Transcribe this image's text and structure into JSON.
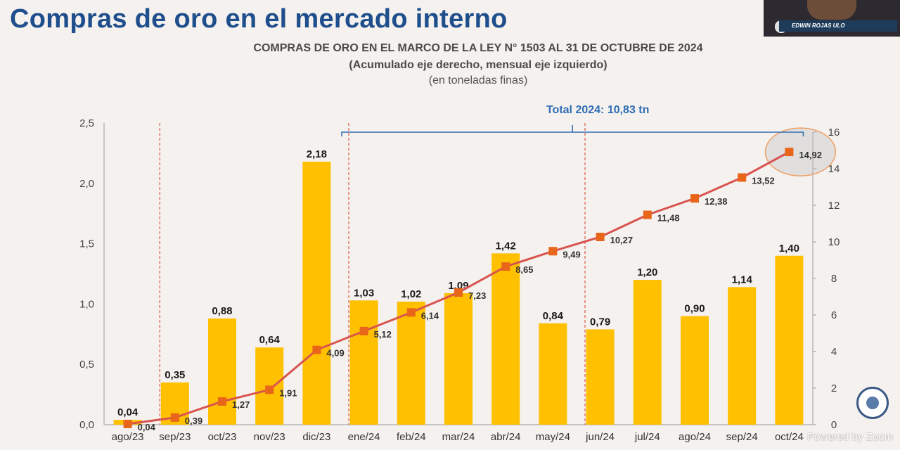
{
  "page": {
    "title": "Compras de oro en el mercado interno",
    "subtitle1": "COMPRAS DE ORO EN EL MARCO DE LA LEY N° 1503 AL 31 DE OCTUBRE DE 2024",
    "subtitle2": "(Acumulado eje derecho, mensual eje izquierdo)",
    "subtitle3": "(en toneladas finas)",
    "speaker_name": "EDWIN ROJAS ULO",
    "watermark": "Powered by Zoom"
  },
  "chart_data": {
    "type": "bar",
    "categories": [
      "ago/23",
      "sep/23",
      "oct/23",
      "nov/23",
      "dic/23",
      "ene/24",
      "feb/24",
      "mar/24",
      "abr/24",
      "may/24",
      "jun/24",
      "jul/24",
      "ago/24",
      "sep/24",
      "oct/24"
    ],
    "series": [
      {
        "type": "bar",
        "axis": "left",
        "color": "#FFC000",
        "values": [
          0.04,
          0.35,
          0.88,
          0.64,
          2.18,
          1.03,
          1.02,
          1.09,
          1.42,
          0.84,
          0.79,
          1.2,
          0.9,
          1.14,
          1.4
        ],
        "labels": [
          "0,04",
          "0,35",
          "0,88",
          "0,64",
          "2,18",
          "1,03",
          "1,02",
          "1,09",
          "1,42",
          "0,84",
          "0,79",
          "1,20",
          "0,90",
          "1,14",
          "1,40"
        ]
      },
      {
        "type": "line",
        "axis": "right",
        "color": "#D9534F",
        "marker_color": "#E8651A",
        "values": [
          0.04,
          0.39,
          1.27,
          1.91,
          4.09,
          5.12,
          6.14,
          7.23,
          8.65,
          9.49,
          10.27,
          11.48,
          12.38,
          13.52,
          14.92
        ],
        "labels": [
          "0,04",
          "0,39",
          "1,27",
          "1,91",
          "4,09",
          "5,12",
          "6,14",
          "7,23",
          "8,65",
          "9,49",
          "10,27",
          "11,48",
          "12,38",
          "13,52",
          "14,92"
        ]
      }
    ],
    "y_left": {
      "min": 0,
      "max": 2.5,
      "ticks": [
        0,
        0.5,
        1,
        1.5,
        2,
        2.5
      ],
      "tick_labels": [
        "0,0",
        "0,5",
        "1,0",
        "1,5",
        "2,0",
        "2,5"
      ]
    },
    "y_right": {
      "min": 0,
      "max": 16,
      "ticks": [
        0,
        2,
        4,
        6,
        8,
        10,
        12,
        14,
        16
      ],
      "tick_labels": [
        "0",
        "2",
        "4",
        "6",
        "8",
        "10",
        "12",
        "14",
        "16"
      ]
    },
    "annotation": {
      "text": "Total 2024: 10,83 tn",
      "from": "ene/24",
      "to": "oct/24",
      "color": "#2E6DB4"
    },
    "separators": [
      "sep/23",
      "ene/24",
      "jun/24"
    ],
    "highlight": "oct/24",
    "grid": false,
    "legend": "none"
  }
}
